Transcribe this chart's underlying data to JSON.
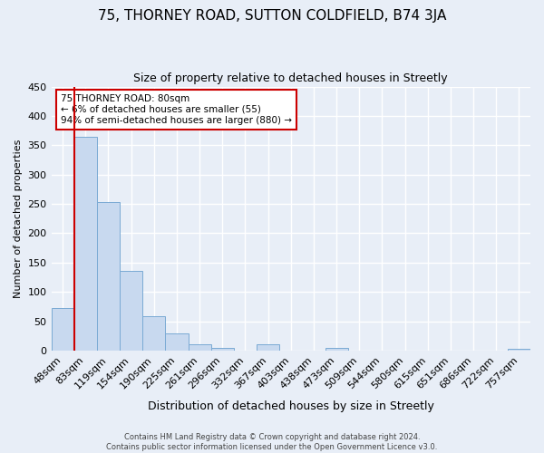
{
  "title": "75, THORNEY ROAD, SUTTON COLDFIELD, B74 3JA",
  "subtitle": "Size of property relative to detached houses in Streetly",
  "xlabel": "Distribution of detached houses by size in Streetly",
  "ylabel": "Number of detached properties",
  "bar_labels": [
    "48sqm",
    "83sqm",
    "119sqm",
    "154sqm",
    "190sqm",
    "225sqm",
    "261sqm",
    "296sqm",
    "332sqm",
    "367sqm",
    "403sqm",
    "438sqm",
    "473sqm",
    "509sqm",
    "544sqm",
    "580sqm",
    "615sqm",
    "651sqm",
    "686sqm",
    "722sqm",
    "757sqm"
  ],
  "bar_heights": [
    73,
    365,
    253,
    136,
    58,
    29,
    11,
    5,
    0,
    11,
    0,
    0,
    5,
    0,
    0,
    0,
    0,
    0,
    0,
    0,
    3
  ],
  "bar_color": "#c8d9ef",
  "bar_edge_color": "#7aaad4",
  "vline_color": "#cc0000",
  "ylim": [
    0,
    450
  ],
  "yticks": [
    0,
    50,
    100,
    150,
    200,
    250,
    300,
    350,
    400,
    450
  ],
  "annotation_title": "75 THORNEY ROAD: 80sqm",
  "annotation_line1": "← 6% of detached houses are smaller (55)",
  "annotation_line2": "94% of semi-detached houses are larger (880) →",
  "annotation_box_color": "#cc0000",
  "footer_line1": "Contains HM Land Registry data © Crown copyright and database right 2024.",
  "footer_line2": "Contains public sector information licensed under the Open Government Licence v3.0.",
  "bg_color": "#e8eef7",
  "grid_color": "#ffffff",
  "title_fontsize": 11,
  "subtitle_fontsize": 9
}
